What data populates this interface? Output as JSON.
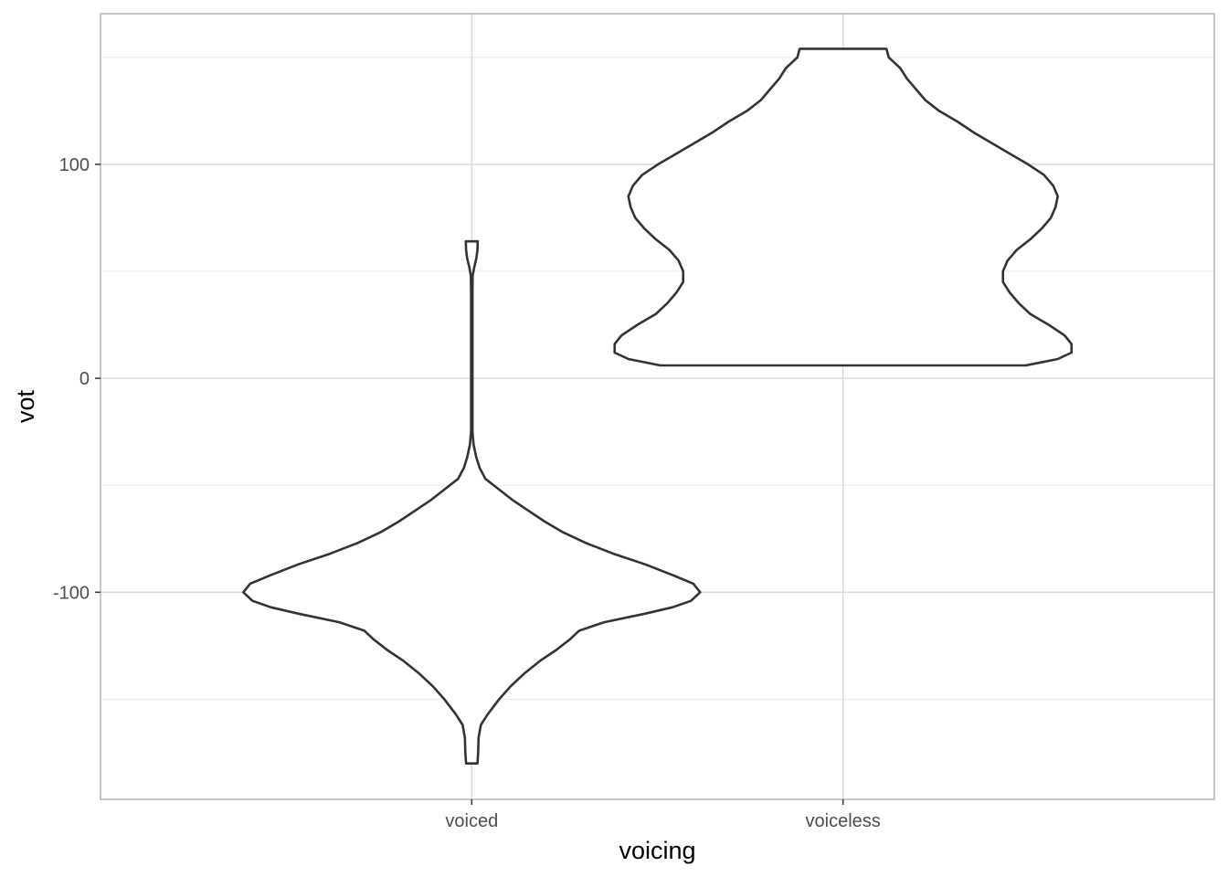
{
  "chart_data": {
    "type": "violin",
    "title": "",
    "xlabel": "voicing",
    "ylabel": "vot",
    "categories": [
      "voiced",
      "voiceless"
    ],
    "ylim": [
      -196.8,
      170.4
    ],
    "y_ticks": [
      {
        "value": -100,
        "label": "-100"
      },
      {
        "value": 0,
        "label": "0"
      },
      {
        "value": 100,
        "label": "100"
      }
    ],
    "y_minor_breaks": [
      -150,
      -50,
      50,
      150
    ],
    "grid": true,
    "legend": "none",
    "series": [
      {
        "category": "voiced",
        "y_range": [
          -180,
          64
        ],
        "profile": [
          [
            -180,
            0.025
          ],
          [
            -175,
            0.028
          ],
          [
            -168,
            0.03
          ],
          [
            -162,
            0.04
          ],
          [
            -157,
            0.07
          ],
          [
            -150,
            0.12
          ],
          [
            -144,
            0.17
          ],
          [
            -138,
            0.23
          ],
          [
            -132,
            0.3
          ],
          [
            -127,
            0.37
          ],
          [
            -122,
            0.43
          ],
          [
            -118,
            0.47
          ],
          [
            -114,
            0.58
          ],
          [
            -110,
            0.76
          ],
          [
            -107,
            0.88
          ],
          [
            -104,
            0.96
          ],
          [
            -100,
            1.0
          ],
          [
            -96,
            0.97
          ],
          [
            -92,
            0.88
          ],
          [
            -87,
            0.76
          ],
          [
            -82,
            0.62
          ],
          [
            -77,
            0.5
          ],
          [
            -72,
            0.4
          ],
          [
            -67,
            0.32
          ],
          [
            -62,
            0.25
          ],
          [
            -57,
            0.18
          ],
          [
            -52,
            0.12
          ],
          [
            -47,
            0.06
          ],
          [
            -42,
            0.035
          ],
          [
            -37,
            0.02
          ],
          [
            -31,
            0.008
          ],
          [
            -25,
            0.003
          ],
          [
            -15,
            0.003
          ],
          [
            0,
            0.003
          ],
          [
            20,
            0.003
          ],
          [
            40,
            0.003
          ],
          [
            48,
            0.004
          ],
          [
            52,
            0.011
          ],
          [
            56,
            0.02
          ],
          [
            60,
            0.025
          ],
          [
            64,
            0.026
          ]
        ]
      },
      {
        "category": "voiceless",
        "y_range": [
          6,
          154
        ],
        "profile": [
          [
            6,
            0.8
          ],
          [
            9,
            0.94
          ],
          [
            12,
            1.0
          ],
          [
            16,
            1.0
          ],
          [
            20,
            0.97
          ],
          [
            25,
            0.9
          ],
          [
            30,
            0.82
          ],
          [
            35,
            0.77
          ],
          [
            40,
            0.73
          ],
          [
            45,
            0.7
          ],
          [
            50,
            0.7
          ],
          [
            55,
            0.72
          ],
          [
            60,
            0.76
          ],
          [
            65,
            0.82
          ],
          [
            70,
            0.87
          ],
          [
            75,
            0.91
          ],
          [
            80,
            0.93
          ],
          [
            85,
            0.94
          ],
          [
            90,
            0.92
          ],
          [
            95,
            0.88
          ],
          [
            100,
            0.81
          ],
          [
            105,
            0.73
          ],
          [
            110,
            0.65
          ],
          [
            115,
            0.57
          ],
          [
            120,
            0.5
          ],
          [
            125,
            0.42
          ],
          [
            130,
            0.36
          ],
          [
            135,
            0.32
          ],
          [
            140,
            0.28
          ],
          [
            145,
            0.25
          ],
          [
            150,
            0.2
          ],
          [
            154,
            0.19
          ]
        ]
      }
    ]
  },
  "colors": {
    "panel_border": "#b3b3b3",
    "grid_major": "#d9d9d9",
    "grid_minor": "#ebebeb",
    "violin_stroke": "#333333",
    "violin_fill": "#ffffff"
  }
}
